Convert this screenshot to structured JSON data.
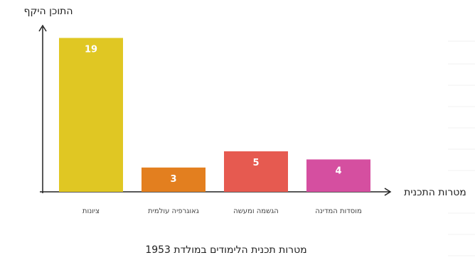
{
  "chart_data": {
    "type": "bar",
    "ylabel": "התוכן היקף",
    "xlabel": "מטרות התכנית",
    "caption": "מטרות תכנית הלימודים במולדת 1953",
    "categories": [
      "ציונות",
      "גאוגרפיה עולמית",
      "הגשמה ומעשה",
      "מוסדות המדינה"
    ],
    "values": [
      19,
      3,
      5,
      4
    ],
    "colors": [
      "#e0c723",
      "#e37f1f",
      "#e65a50",
      "#d54fa0"
    ],
    "ylim": [
      0,
      20
    ],
    "grid": false,
    "data_labels": true
  }
}
